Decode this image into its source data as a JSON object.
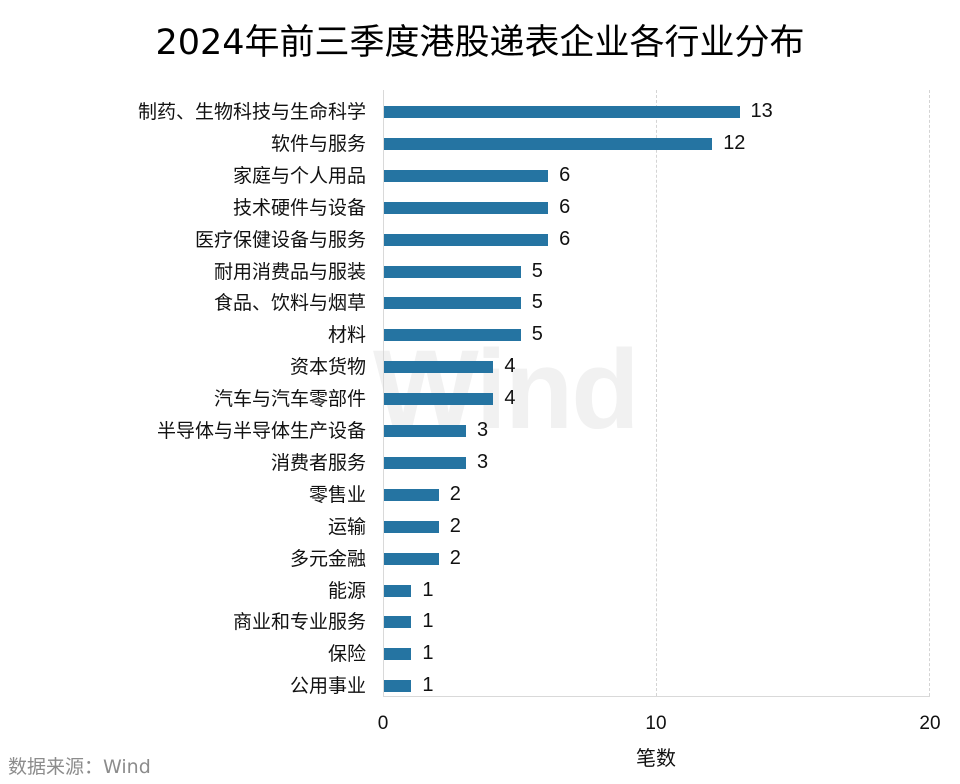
{
  "chart_data": {
    "type": "bar",
    "orientation": "horizontal",
    "title": "2024年前三季度港股递表企业各行业分布",
    "xlabel": "笔数",
    "ylabel": "",
    "xlim": [
      0,
      20
    ],
    "xticks": [
      "0",
      "10",
      "20"
    ],
    "grid": "vertical dashed at 10 and 20",
    "legend": null,
    "bar_color": "#2574a2",
    "categories": [
      "制药、生物科技与生命科学",
      "软件与服务",
      "家庭与个人用品",
      "技术硬件与设备",
      "医疗保健设备与服务",
      "耐用消费品与服装",
      "食品、饮料与烟草",
      "材料",
      "资本货物",
      "汽车与汽车零部件",
      "半导体与半导体生产设备",
      "消费者服务",
      "零售业",
      "运输",
      "多元金融",
      "能源",
      "商业和专业服务",
      "保险",
      "公用事业"
    ],
    "values": [
      13,
      12,
      6,
      6,
      6,
      5,
      5,
      5,
      4,
      4,
      3,
      3,
      2,
      2,
      2,
      1,
      1,
      1,
      1
    ],
    "value_labels": [
      "13",
      "12",
      "6",
      "6",
      "6",
      "5",
      "5",
      "5",
      "4",
      "4",
      "3",
      "3",
      "2",
      "2",
      "2",
      "1",
      "1",
      "1",
      "1"
    ]
  },
  "watermark": "Wind",
  "source": "数据来源：Wind"
}
